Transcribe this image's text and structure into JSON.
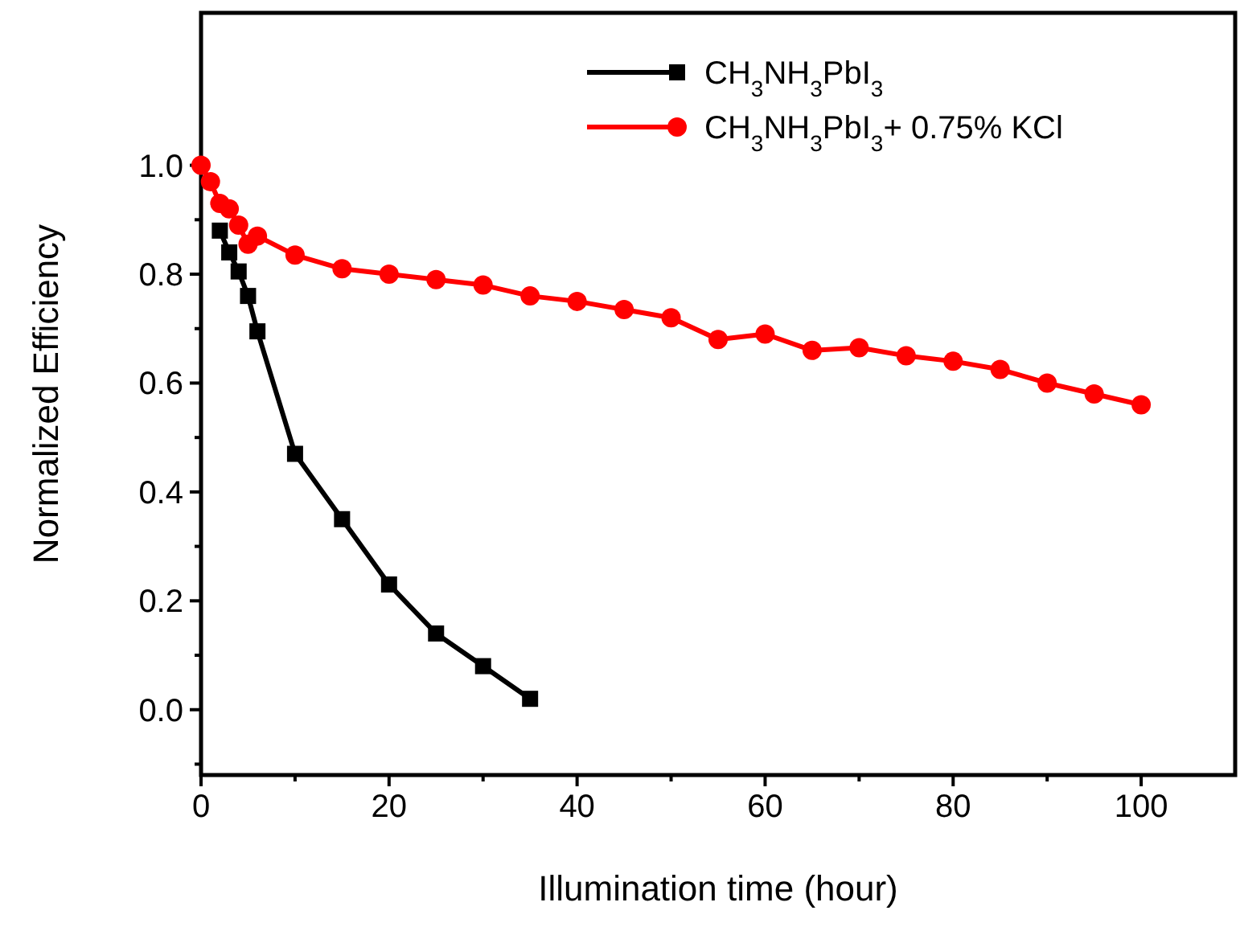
{
  "chart_data": {
    "type": "line",
    "xlabel": "Illumination time (hour)",
    "ylabel": "Normalized Efficiency",
    "xlim": [
      0,
      110
    ],
    "ylim": [
      -0.12,
      1.28
    ],
    "xticks": [
      0,
      {
        "value": 10,
        "label": null
      },
      20,
      {
        "value": 30,
        "label": null
      },
      40,
      {
        "value": 50,
        "label": null
      },
      60,
      {
        "value": 70,
        "label": null
      },
      80,
      {
        "value": 90,
        "label": null
      },
      100
    ],
    "yticks": [
      {
        "value": -0.1,
        "label": null
      },
      {
        "value": 0,
        "label": "0.0"
      },
      {
        "value": 0.1,
        "label": null
      },
      0.2,
      {
        "value": 0.3,
        "label": null
      },
      0.4,
      {
        "value": 0.5,
        "label": null
      },
      0.6,
      {
        "value": 0.7,
        "label": null
      },
      0.8,
      {
        "value": 0.9,
        "label": null
      },
      {
        "value": 1,
        "label": "1.0"
      }
    ],
    "grid": false,
    "legend": "top right",
    "line_style": "solid",
    "series": [
      {
        "name": "CH$_{3}$NH$_{3}$PbI$_{3}$",
        "color": "#000000",
        "marker": "square",
        "x": [
          2,
          3,
          4,
          5,
          6,
          10,
          15,
          20,
          25,
          30,
          35
        ],
        "values": [
          0.88,
          0.84,
          0.805,
          0.76,
          0.695,
          0.47,
          0.35,
          0.23,
          0.14,
          0.08,
          0.02
        ]
      },
      {
        "name": "CH$_{3}$NH$_{3}$PbI$_{3}$+ 0.75% KCl",
        "color": "#ff0000",
        "marker": "circle",
        "x": [
          0,
          1,
          2,
          3,
          4,
          5,
          6,
          10,
          15,
          20,
          25,
          30,
          35,
          40,
          45,
          50,
          55,
          60,
          65,
          70,
          75,
          80,
          85,
          90,
          95,
          100
        ],
        "values": [
          1.0,
          0.97,
          0.93,
          0.92,
          0.89,
          0.855,
          0.87,
          0.835,
          0.81,
          0.8,
          0.79,
          0.78,
          0.76,
          0.75,
          0.735,
          0.72,
          0.68,
          0.69,
          0.66,
          0.665,
          0.65,
          0.64,
          0.625,
          0.6,
          0.58,
          0.56
        ]
      }
    ]
  }
}
